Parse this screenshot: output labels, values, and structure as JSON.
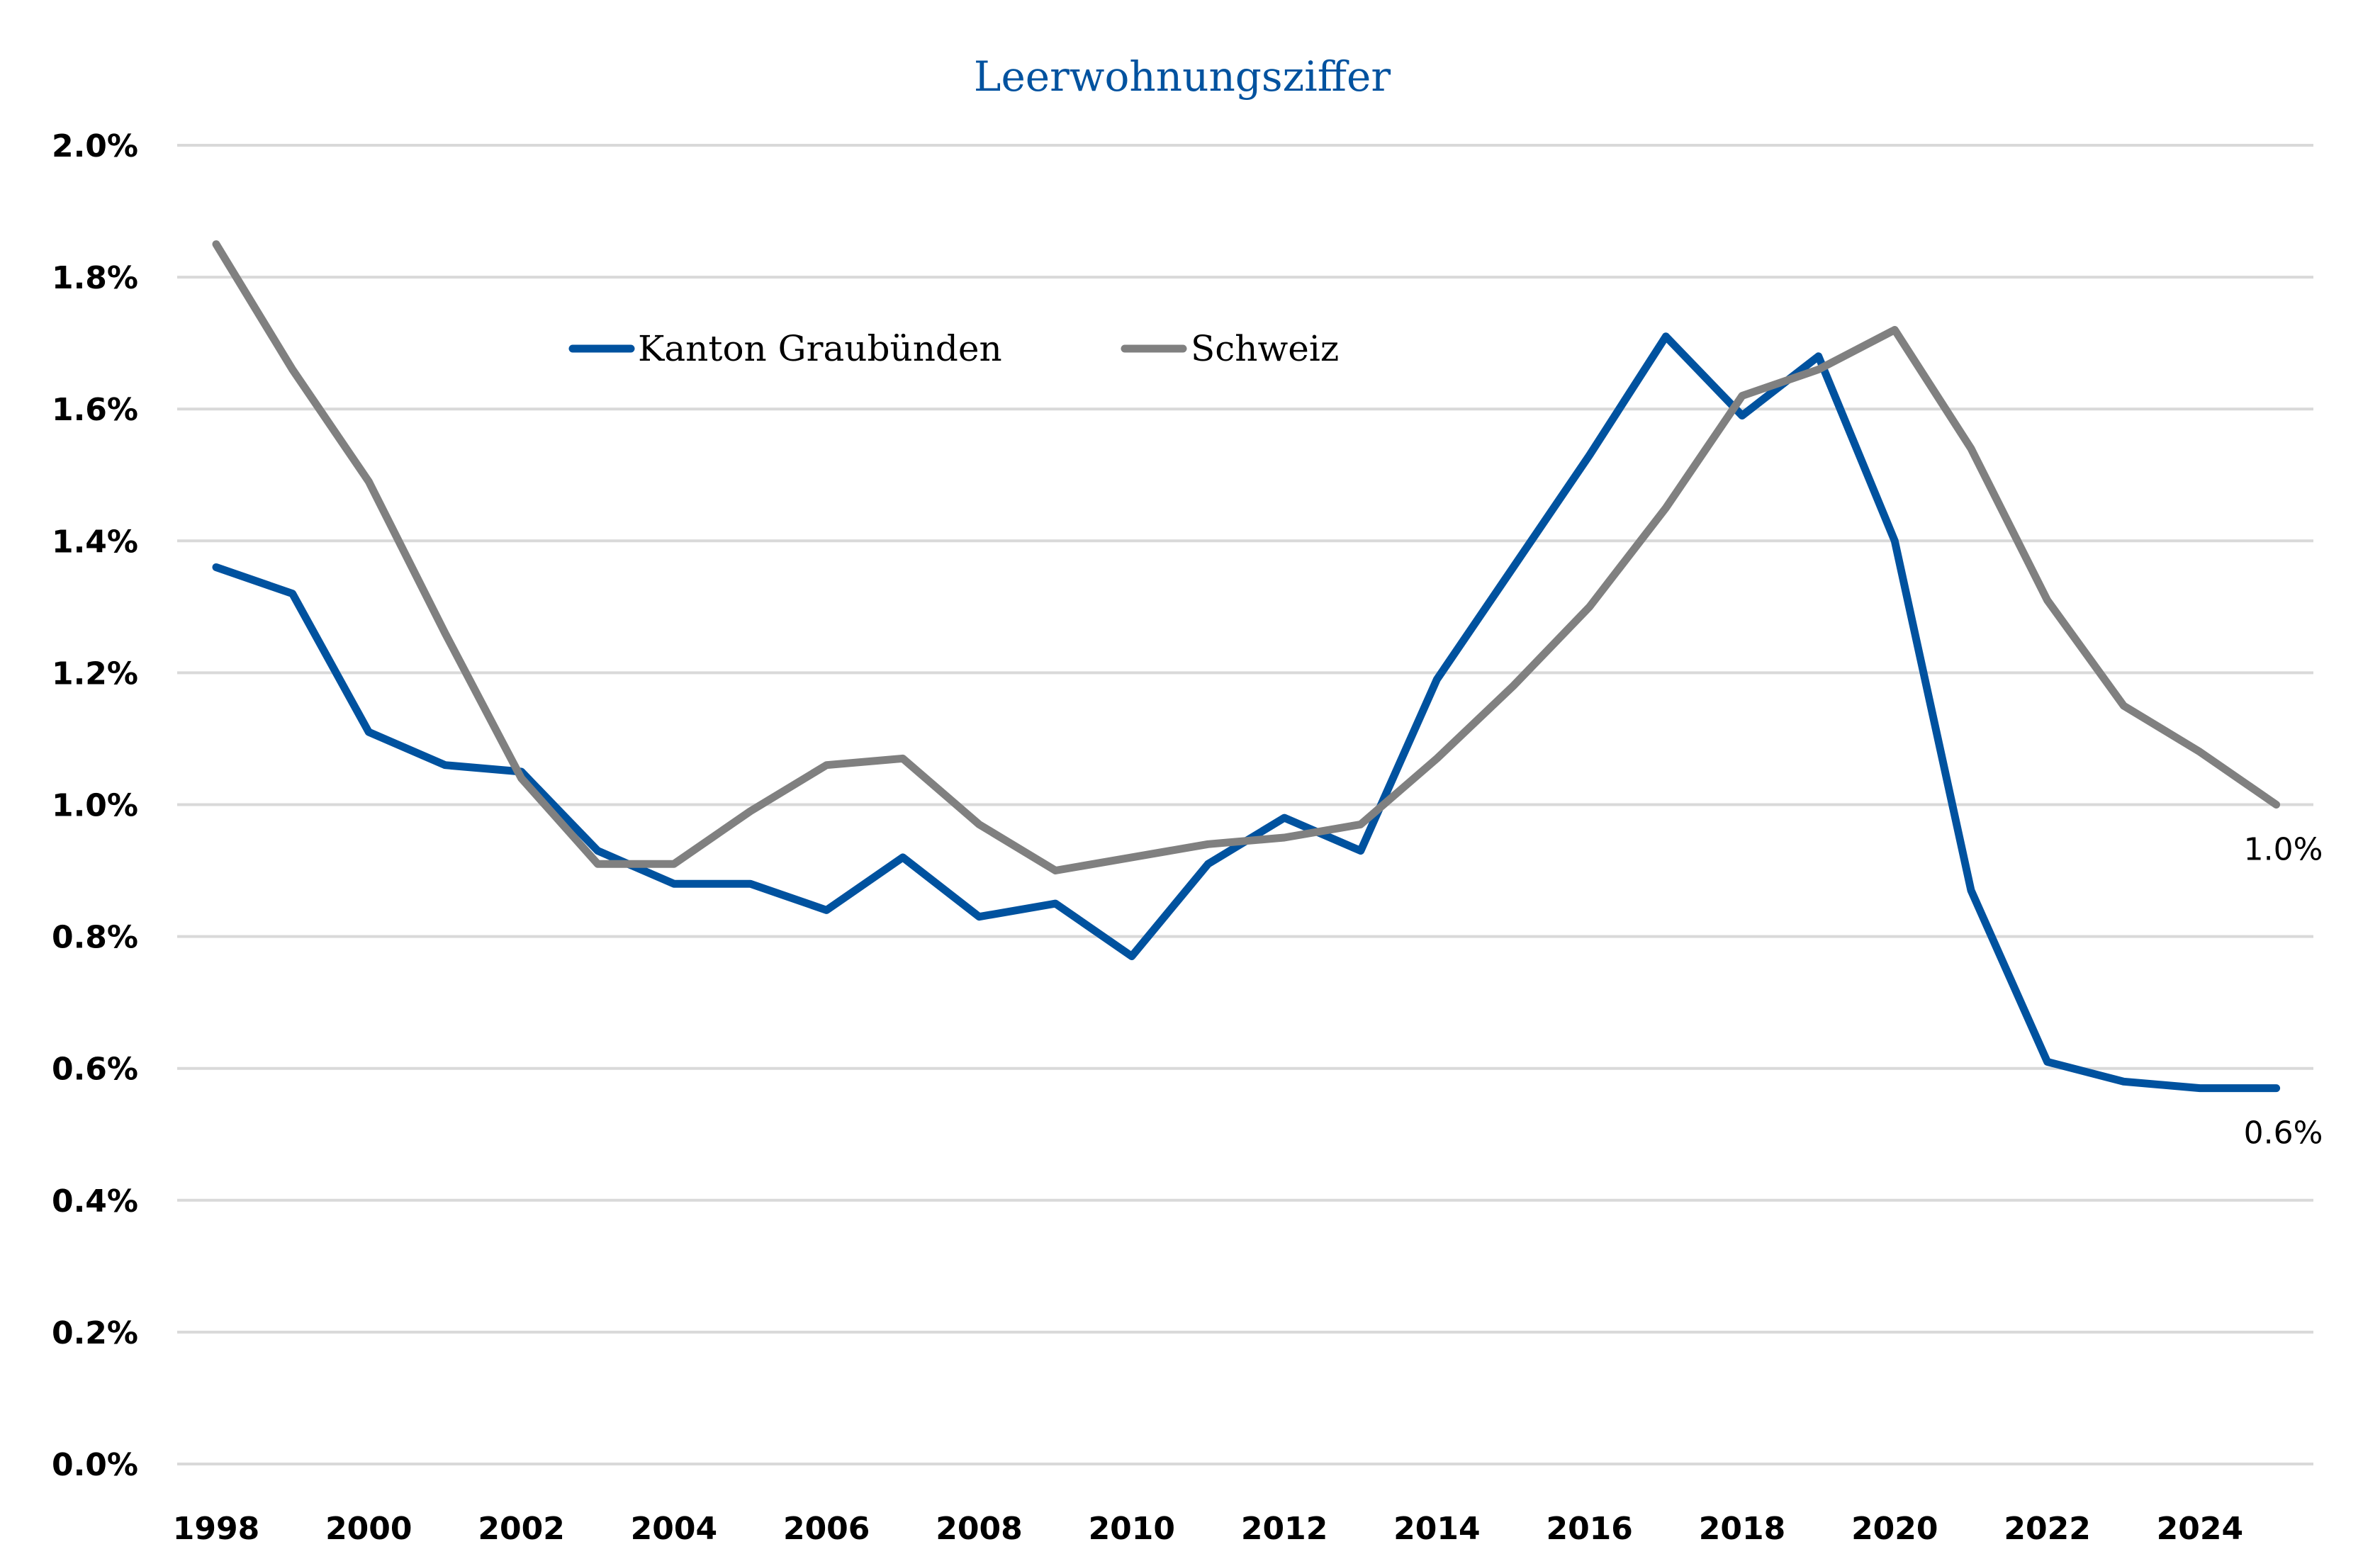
{
  "chart_data": {
    "type": "line",
    "title": "Leerwohnungsziffer",
    "xlabel": "",
    "ylabel": "",
    "ylim": [
      0,
      2.0
    ],
    "y_ticks": [
      "0.0%",
      "0.2%",
      "0.4%",
      "0.6%",
      "0.8%",
      "1.0%",
      "1.2%",
      "1.4%",
      "1.6%",
      "1.8%",
      "2.0%"
    ],
    "y_tick_values": [
      0,
      0.2,
      0.4,
      0.6,
      0.8,
      1.0,
      1.2,
      1.4,
      1.6,
      1.8,
      2.0
    ],
    "x": [
      1998,
      1999,
      2000,
      2001,
      2002,
      2003,
      2004,
      2005,
      2006,
      2007,
      2008,
      2009,
      2010,
      2011,
      2012,
      2013,
      2014,
      2015,
      2016,
      2017,
      2018,
      2019,
      2020,
      2021,
      2022,
      2023,
      2024,
      2025
    ],
    "x_ticks": [
      "1998",
      "2000",
      "2002",
      "2004",
      "2006",
      "2008",
      "2010",
      "2012",
      "2014",
      "2016",
      "2018",
      "2020",
      "2022",
      "2024"
    ],
    "x_tick_values": [
      1998,
      2000,
      2002,
      2004,
      2006,
      2008,
      2010,
      2012,
      2014,
      2016,
      2018,
      2020,
      2022,
      2024
    ],
    "grid": true,
    "legend_position": "top-left",
    "series": [
      {
        "name": "Kanton Graubünden",
        "color": "#00529f",
        "values": [
          1.36,
          1.32,
          1.11,
          1.06,
          1.05,
          0.93,
          0.88,
          0.88,
          0.84,
          0.92,
          0.83,
          0.85,
          0.77,
          0.91,
          0.98,
          0.93,
          1.19,
          1.36,
          1.53,
          1.71,
          1.59,
          1.68,
          1.4,
          0.87,
          0.61,
          0.58,
          0.57,
          0.57
        ],
        "end_label": "0.6%"
      },
      {
        "name": "Schweiz",
        "color": "#808080",
        "values": [
          1.85,
          1.66,
          1.49,
          1.26,
          1.04,
          0.91,
          0.91,
          0.99,
          1.06,
          1.07,
          0.97,
          0.9,
          0.92,
          0.94,
          0.95,
          0.97,
          1.07,
          1.18,
          1.3,
          1.45,
          1.62,
          1.66,
          1.72,
          1.54,
          1.31,
          1.15,
          1.08,
          1.0
        ],
        "end_label": "1.0%"
      }
    ]
  }
}
